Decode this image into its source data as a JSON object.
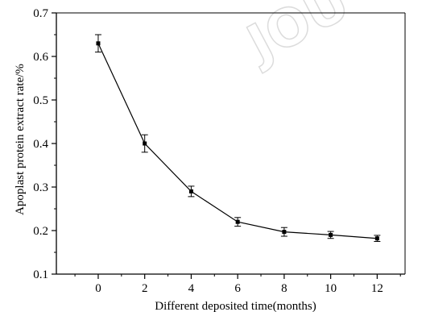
{
  "chart_data": {
    "type": "line",
    "title": "",
    "xlabel": "Different deposited time(months)",
    "ylabel": "Apoplast protein extract rate/%",
    "xlim": [
      -1.8,
      13.2
    ],
    "ylim": [
      0.1,
      0.7
    ],
    "x_ticks": [
      0,
      2,
      4,
      6,
      8,
      10,
      12
    ],
    "y_ticks": [
      0.1,
      0.2,
      0.3,
      0.4,
      0.5,
      0.6,
      0.7
    ],
    "x_tick_labels": [
      "0",
      "2",
      "4",
      "6",
      "8",
      "10",
      "12"
    ],
    "y_tick_labels": [
      "0.1",
      "0.2",
      "0.3",
      "0.4",
      "0.5",
      "0.6",
      "0.7"
    ],
    "grid": false,
    "series": [
      {
        "x": [
          0,
          2,
          4,
          6,
          8,
          10,
          12
        ],
        "y": [
          0.63,
          0.4,
          0.29,
          0.22,
          0.197,
          0.19,
          0.182
        ],
        "error": [
          0.02,
          0.02,
          0.012,
          0.01,
          0.01,
          0.008,
          0.007
        ],
        "color": "#000000",
        "marker": "square"
      }
    ]
  },
  "watermark": {
    "text": "JOU",
    "color": "#dcdcdc"
  }
}
